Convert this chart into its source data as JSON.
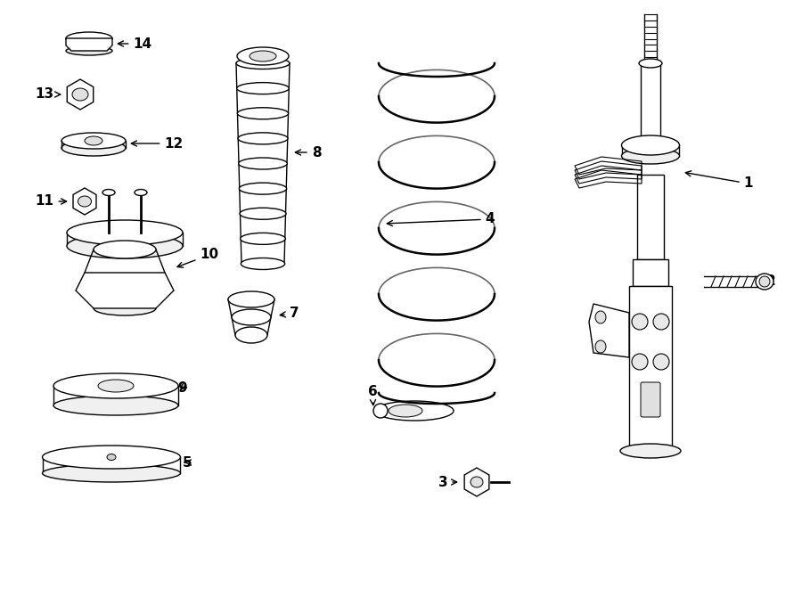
{
  "bg_color": "#ffffff",
  "line_color": "#000000",
  "figsize": [
    9.0,
    6.61
  ],
  "dpi": 100,
  "lw": 1.0
}
